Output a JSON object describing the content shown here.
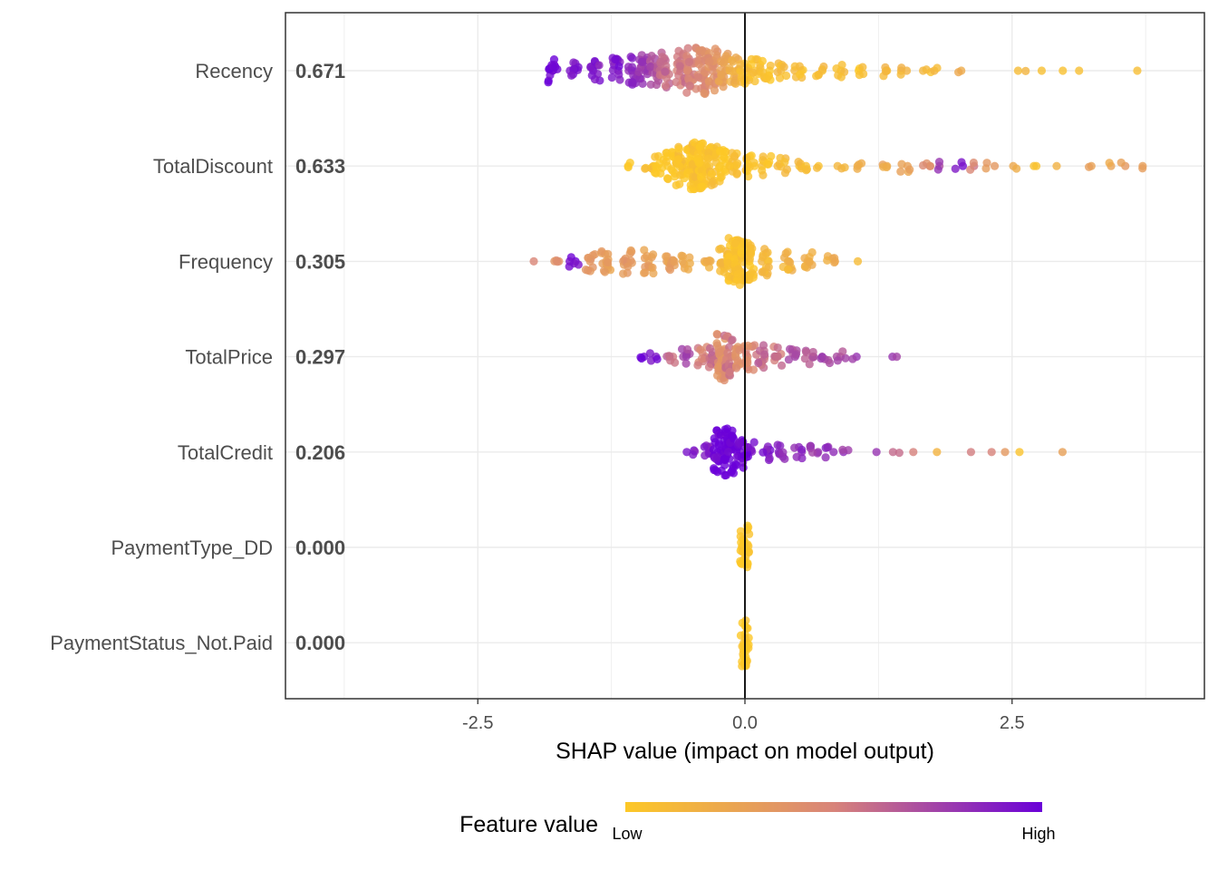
{
  "chart_data": {
    "type": "scatter",
    "subtype": "shap-summary-beeswarm",
    "xlabel": "SHAP value (impact on model output)",
    "xlim": [
      -4.3,
      4.3
    ],
    "xticks": [
      -2.5,
      0.0,
      2.5
    ],
    "xtick_labels": [
      "-2.5",
      "0.0",
      "2.5"
    ],
    "grid": true,
    "legend": {
      "title": "Feature value",
      "low_label": "Low",
      "high_label": "High",
      "position": "bottom",
      "color_low": "#FDC827",
      "color_mid": "#D8847A",
      "color_high": "#6A00D8"
    },
    "features": [
      {
        "name": "Recency",
        "mean_abs_shap": "0.671",
        "points": [
          [
            -1.8,
            1,
            14
          ],
          [
            -1.6,
            0.95,
            10
          ],
          [
            -1.4,
            0.9,
            12
          ],
          [
            -1.2,
            0.92,
            14
          ],
          [
            -1.05,
            0.85,
            16
          ],
          [
            -0.95,
            0.8,
            18
          ],
          [
            -0.85,
            0.7,
            18
          ],
          [
            -0.75,
            0.6,
            20
          ],
          [
            -0.6,
            0.55,
            22
          ],
          [
            -0.5,
            0.5,
            26
          ],
          [
            -0.4,
            0.45,
            30
          ],
          [
            -0.3,
            0.4,
            26
          ],
          [
            -0.2,
            0.3,
            20
          ],
          [
            -0.1,
            0.2,
            16
          ],
          [
            0.0,
            0.1,
            14
          ],
          [
            0.1,
            0.05,
            12
          ],
          [
            0.2,
            0.05,
            10
          ],
          [
            0.35,
            0.1,
            8
          ],
          [
            0.5,
            0.08,
            8
          ],
          [
            0.7,
            0.1,
            6
          ],
          [
            0.9,
            0.1,
            6
          ],
          [
            1.1,
            0.05,
            5
          ],
          [
            1.3,
            0.12,
            5
          ],
          [
            1.5,
            0.15,
            4
          ],
          [
            1.7,
            0.1,
            3
          ],
          [
            1.8,
            0.1,
            2
          ],
          [
            2.0,
            0.2,
            2
          ],
          [
            2.6,
            0.1,
            2
          ],
          [
            2.8,
            0.05,
            1
          ],
          [
            2.95,
            0.1,
            1
          ],
          [
            3.1,
            0.05,
            1
          ],
          [
            3.65,
            0.05,
            1
          ]
        ]
      },
      {
        "name": "TotalDiscount",
        "mean_abs_shap": "0.633",
        "points": [
          [
            -1.05,
            0.0,
            3
          ],
          [
            -0.9,
            0.05,
            6
          ],
          [
            -0.8,
            0.0,
            10
          ],
          [
            -0.7,
            0.0,
            16
          ],
          [
            -0.6,
            0.05,
            22
          ],
          [
            -0.5,
            0.0,
            34
          ],
          [
            -0.45,
            0.05,
            40
          ],
          [
            -0.4,
            0.0,
            34
          ],
          [
            -0.3,
            0.05,
            24
          ],
          [
            -0.2,
            0.0,
            18
          ],
          [
            -0.1,
            0.05,
            14
          ],
          [
            0.05,
            0.05,
            12
          ],
          [
            0.2,
            0.05,
            10
          ],
          [
            0.35,
            0.1,
            8
          ],
          [
            0.5,
            0.1,
            5
          ],
          [
            0.6,
            0.05,
            3
          ],
          [
            0.7,
            0.1,
            2
          ],
          [
            0.9,
            0.1,
            3
          ],
          [
            1.05,
            0.2,
            4
          ],
          [
            1.3,
            0.25,
            4
          ],
          [
            1.5,
            0.3,
            5
          ],
          [
            1.7,
            0.45,
            4
          ],
          [
            1.85,
            0.75,
            3
          ],
          [
            2.0,
            0.9,
            3
          ],
          [
            2.15,
            0.5,
            3
          ],
          [
            2.3,
            0.35,
            3
          ],
          [
            2.5,
            0.2,
            2
          ],
          [
            2.7,
            0.1,
            2
          ],
          [
            2.95,
            0.15,
            1
          ],
          [
            3.2,
            0.3,
            2
          ],
          [
            3.4,
            0.25,
            2
          ],
          [
            3.55,
            0.35,
            2
          ],
          [
            3.7,
            0.35,
            2
          ]
        ]
      },
      {
        "name": "Frequency",
        "mean_abs_shap": "0.305",
        "points": [
          [
            -1.98,
            0.45,
            1
          ],
          [
            -1.75,
            0.4,
            4
          ],
          [
            -1.6,
            0.95,
            6
          ],
          [
            -1.45,
            0.35,
            10
          ],
          [
            -1.3,
            0.3,
            14
          ],
          [
            -1.1,
            0.35,
            14
          ],
          [
            -0.9,
            0.3,
            14
          ],
          [
            -0.7,
            0.3,
            12
          ],
          [
            -0.55,
            0.25,
            8
          ],
          [
            -0.35,
            0.2,
            6
          ],
          [
            -0.2,
            0.1,
            14
          ],
          [
            -0.12,
            0.05,
            36
          ],
          [
            -0.05,
            0.05,
            40
          ],
          [
            0.05,
            0.05,
            22
          ],
          [
            0.2,
            0.1,
            16
          ],
          [
            0.4,
            0.15,
            12
          ],
          [
            0.6,
            0.2,
            10
          ],
          [
            0.8,
            0.2,
            6
          ],
          [
            1.05,
            0.15,
            1
          ]
        ]
      },
      {
        "name": "TotalPrice",
        "mean_abs_shap": "0.297",
        "points": [
          [
            -0.95,
            1,
            3
          ],
          [
            -0.85,
            0.95,
            4
          ],
          [
            -0.7,
            0.6,
            6
          ],
          [
            -0.55,
            0.75,
            8
          ],
          [
            -0.4,
            0.5,
            10
          ],
          [
            -0.3,
            0.6,
            12
          ],
          [
            -0.22,
            0.4,
            30
          ],
          [
            -0.15,
            0.55,
            24
          ],
          [
            -0.05,
            0.4,
            14
          ],
          [
            0.05,
            0.45,
            14
          ],
          [
            0.15,
            0.6,
            12
          ],
          [
            0.3,
            0.55,
            10
          ],
          [
            0.45,
            0.7,
            8
          ],
          [
            0.6,
            0.65,
            8
          ],
          [
            0.75,
            0.75,
            6
          ],
          [
            0.9,
            0.7,
            5
          ],
          [
            1.0,
            0.75,
            2
          ],
          [
            1.35,
            0.8,
            1
          ],
          [
            1.45,
            0.8,
            1
          ]
        ]
      },
      {
        "name": "TotalCredit",
        "mean_abs_shap": "0.206",
        "points": [
          [
            -0.5,
            0.9,
            4
          ],
          [
            -0.35,
            0.9,
            8
          ],
          [
            -0.25,
            1,
            26
          ],
          [
            -0.15,
            1,
            44
          ],
          [
            -0.05,
            0.98,
            18
          ],
          [
            0.05,
            0.95,
            10
          ],
          [
            0.2,
            0.9,
            8
          ],
          [
            0.35,
            0.85,
            8
          ],
          [
            0.5,
            0.85,
            6
          ],
          [
            0.65,
            0.8,
            6
          ],
          [
            0.8,
            0.85,
            5
          ],
          [
            0.95,
            0.8,
            3
          ],
          [
            1.2,
            0.75,
            1
          ],
          [
            1.4,
            0.65,
            2
          ],
          [
            1.6,
            0.55,
            1
          ],
          [
            1.8,
            0.1,
            1
          ],
          [
            2.15,
            0.5,
            1
          ],
          [
            2.3,
            0.45,
            1
          ],
          [
            2.45,
            0.4,
            1
          ],
          [
            2.55,
            0.05,
            1
          ],
          [
            3.0,
            0.3,
            1
          ]
        ]
      },
      {
        "name": "PaymentType_DD",
        "mean_abs_shap": "0.000",
        "points": [
          [
            0.0,
            0.0,
            30
          ]
        ]
      },
      {
        "name": "PaymentStatus_Not.Paid",
        "mean_abs_shap": "0.000",
        "points": [
          [
            0.0,
            0.0,
            34
          ]
        ]
      }
    ]
  }
}
